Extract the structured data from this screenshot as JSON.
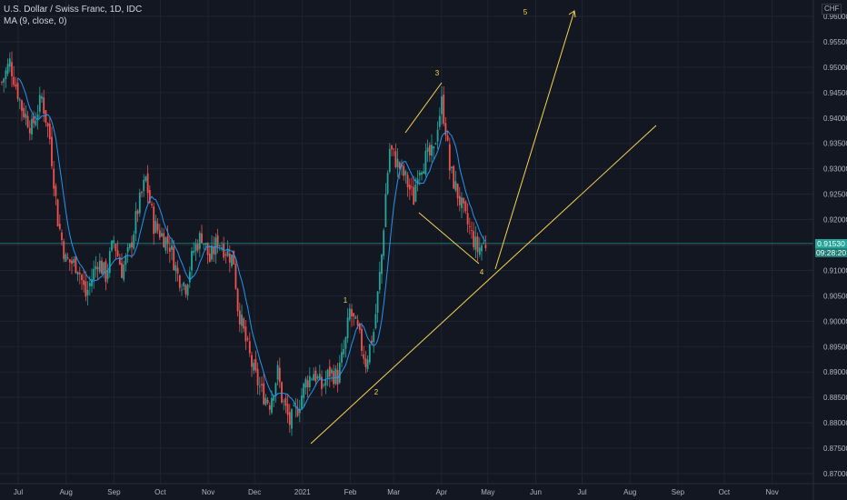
{
  "header": {
    "symbol_line": "U.S. Dollar / Swiss Franc, 1D, IDC",
    "indicator_line": "MA (9, close, 0)",
    "currency": "CHF"
  },
  "last_price": {
    "value": "0.91530",
    "countdown": "09:28:20"
  },
  "colors": {
    "background": "#131722",
    "up": "#26a69a",
    "down": "#ef5350",
    "ma": "#2196f3",
    "drawing": "#f7d351",
    "grid": "#1f2430",
    "axis_text": "#b2b5be"
  },
  "chart_data": {
    "type": "candlestick",
    "title": "U.S. Dollar / Swiss Franc, 1D, IDC",
    "indicator": "MA (9, close, 0)",
    "ylim": [
      0.8685,
      0.962
    ],
    "y_ticks": [
      "0.96000",
      "0.95500",
      "0.95000",
      "0.94500",
      "0.94000",
      "0.93500",
      "0.93000",
      "0.92500",
      "0.92000",
      "0.91500",
      "0.91000",
      "0.90500",
      "0.90000",
      "0.89500",
      "0.89000",
      "0.88500",
      "0.88000",
      "0.87500",
      "0.87000"
    ],
    "x_ticks": [
      "Jul",
      "Aug",
      "Sep",
      "Oct",
      "Nov",
      "Dec",
      "2021",
      "Feb",
      "Mar",
      "Apr",
      "May",
      "Jun",
      "Jul",
      "Aug",
      "Sep",
      "Oct",
      "Nov"
    ],
    "price_path": [
      [
        0,
        0.947
      ],
      [
        4,
        0.951
      ],
      [
        10,
        0.942
      ],
      [
        15,
        0.938
      ],
      [
        20,
        0.944
      ],
      [
        24,
        0.936
      ],
      [
        28,
        0.92
      ],
      [
        32,
        0.912
      ],
      [
        38,
        0.911
      ],
      [
        42,
        0.905
      ],
      [
        48,
        0.912
      ],
      [
        52,
        0.909
      ],
      [
        56,
        0.916
      ],
      [
        60,
        0.91
      ],
      [
        64,
        0.914
      ],
      [
        68,
        0.922
      ],
      [
        72,
        0.928
      ],
      [
        76,
        0.919
      ],
      [
        80,
        0.917
      ],
      [
        84,
        0.915
      ],
      [
        88,
        0.909
      ],
      [
        92,
        0.907
      ],
      [
        96,
        0.914
      ],
      [
        100,
        0.917
      ],
      [
        104,
        0.912
      ],
      [
        108,
        0.916
      ],
      [
        112,
        0.914
      ],
      [
        116,
        0.912
      ],
      [
        118,
        0.903
      ],
      [
        122,
        0.896
      ],
      [
        126,
        0.89
      ],
      [
        130,
        0.886
      ],
      [
        134,
        0.884
      ],
      [
        138,
        0.89
      ],
      [
        140,
        0.885
      ],
      [
        144,
        0.88
      ],
      [
        148,
        0.883
      ],
      [
        152,
        0.888
      ],
      [
        156,
        0.89
      ],
      [
        160,
        0.887
      ],
      [
        164,
        0.89
      ],
      [
        168,
        0.889
      ],
      [
        172,
        0.896
      ],
      [
        174,
        0.902
      ],
      [
        178,
        0.898
      ],
      [
        182,
        0.892
      ],
      [
        184,
        0.895
      ],
      [
        186,
        0.898
      ],
      [
        188,
        0.905
      ],
      [
        190,
        0.913
      ],
      [
        192,
        0.925
      ],
      [
        194,
        0.934
      ],
      [
        198,
        0.931
      ],
      [
        202,
        0.928
      ],
      [
        206,
        0.924
      ],
      [
        208,
        0.93
      ],
      [
        212,
        0.932
      ],
      [
        216,
        0.933
      ],
      [
        218,
        0.939
      ],
      [
        220,
        0.943
      ],
      [
        222,
        0.938
      ],
      [
        224,
        0.93
      ],
      [
        228,
        0.925
      ],
      [
        232,
        0.92
      ],
      [
        236,
        0.916
      ],
      [
        238,
        0.914
      ],
      [
        240,
        0.915
      ],
      [
        242,
        0.9153
      ]
    ],
    "wave_labels": [
      {
        "text": "1",
        "date": "2021-02-03",
        "price": 0.9069
      },
      {
        "text": "2",
        "date": "2021-02-08",
        "price": 0.8845
      },
      {
        "text": "3",
        "date": "2021-03-31",
        "price": 0.9484
      },
      {
        "text": "4",
        "date": "2021-04-23",
        "price": 0.91
      },
      {
        "text": "5",
        "date": "2021-06-26",
        "price": 0.9595
      }
    ],
    "annotations": [
      "1",
      "2",
      "3",
      "4",
      "5"
    ]
  }
}
